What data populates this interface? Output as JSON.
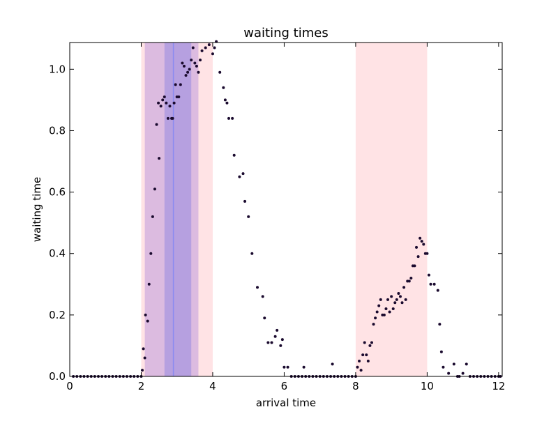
{
  "chart_data": {
    "type": "scatter",
    "title": "waiting times",
    "xlabel": "arrival time",
    "ylabel": "waiting time",
    "xlim": [
      0,
      12.1
    ],
    "ylim": [
      0,
      1.087
    ],
    "xticks": [
      0,
      2,
      4,
      6,
      8,
      10,
      12
    ],
    "yticks": [
      0.0,
      0.2,
      0.4,
      0.6,
      0.8,
      1.0
    ],
    "xtick_labels": [
      "0",
      "2",
      "4",
      "6",
      "8",
      "10",
      "12"
    ],
    "ytick_labels": [
      "0.0",
      "0.2",
      "0.4",
      "0.6",
      "0.8",
      "1.0"
    ],
    "grid": false,
    "colors": {
      "points": "#1a0a2e",
      "red_band": "#ff9aa2",
      "purple_band": "#9b6fd6",
      "blue_band": "#6f6fe0",
      "center_line": "#8b8bf0"
    },
    "shaded_regions": [
      {
        "x0": 2.0,
        "x1": 4.0,
        "color": "red"
      },
      {
        "x0": 8.0,
        "x1": 10.0,
        "color": "red"
      },
      {
        "x0": 2.1,
        "x1": 3.6,
        "color": "purple"
      },
      {
        "x0": 2.65,
        "x1": 3.4,
        "color": "blue"
      }
    ],
    "vertical_lines": [
      {
        "x": 2.9
      }
    ],
    "series": [
      {
        "x": [
          0.1,
          0.2,
          0.3,
          0.4,
          0.5,
          0.6,
          0.7,
          0.8,
          0.9,
          1.0,
          1.1,
          1.2,
          1.3,
          1.4,
          1.5,
          1.6,
          1.7,
          1.8,
          1.9,
          2.0,
          2.03,
          2.06,
          2.1,
          2.12,
          2.18,
          2.22,
          2.27,
          2.32,
          2.38,
          2.43,
          2.48,
          2.5,
          2.55,
          2.6,
          2.65,
          2.7,
          2.75,
          2.8,
          2.85,
          2.88,
          2.92,
          2.96,
          3.0,
          3.05,
          3.1,
          3.15,
          3.2,
          3.25,
          3.3,
          3.35,
          3.4,
          3.45,
          3.5,
          3.55,
          3.6,
          3.65,
          3.7,
          3.8,
          3.9,
          4.0,
          4.05,
          4.1,
          4.2,
          4.3,
          4.35,
          4.4,
          4.45,
          4.55,
          4.6,
          4.75,
          4.85,
          4.9,
          5.0,
          5.1,
          5.25,
          5.4,
          5.45,
          5.55,
          5.65,
          5.75,
          5.8,
          5.9,
          5.95,
          6.0,
          6.1,
          6.2,
          6.3,
          6.4,
          6.5,
          6.55,
          6.6,
          6.7,
          6.8,
          6.9,
          7.0,
          7.1,
          7.2,
          7.3,
          7.35,
          7.4,
          7.5,
          7.6,
          7.7,
          7.8,
          7.9,
          8.0,
          8.05,
          8.1,
          8.15,
          8.2,
          8.25,
          8.3,
          8.35,
          8.4,
          8.45,
          8.5,
          8.55,
          8.6,
          8.65,
          8.7,
          8.75,
          8.8,
          8.85,
          8.9,
          8.95,
          9.0,
          9.05,
          9.1,
          9.15,
          9.2,
          9.25,
          9.3,
          9.35,
          9.4,
          9.45,
          9.5,
          9.55,
          9.6,
          9.65,
          9.7,
          9.75,
          9.8,
          9.85,
          9.9,
          9.95,
          10.0,
          10.05,
          10.1,
          10.2,
          10.3,
          10.35,
          10.4,
          10.45,
          10.6,
          10.75,
          10.85,
          10.9,
          11.0,
          11.1,
          11.2,
          11.3,
          11.4,
          11.5,
          11.6,
          11.7,
          11.8,
          11.9,
          12.0,
          12.05
        ],
        "y": [
          0,
          0,
          0,
          0,
          0,
          0,
          0,
          0,
          0,
          0,
          0,
          0,
          0,
          0,
          0,
          0,
          0,
          0,
          0,
          0,
          0.02,
          0.09,
          0.06,
          0.2,
          0.18,
          0.3,
          0.4,
          0.52,
          0.61,
          0.82,
          0.89,
          0.71,
          0.88,
          0.9,
          0.91,
          0.89,
          0.84,
          0.88,
          0.84,
          0.84,
          0.89,
          0.95,
          0.91,
          0.91,
          0.95,
          1.02,
          1.01,
          0.98,
          0.99,
          1.0,
          1.03,
          1.07,
          1.02,
          1.01,
          0.99,
          1.03,
          1.06,
          1.07,
          1.08,
          1.05,
          1.07,
          1.09,
          0.99,
          0.94,
          0.9,
          0.89,
          0.84,
          0.84,
          0.72,
          0.65,
          0.66,
          0.57,
          0.52,
          0.4,
          0.29,
          0.26,
          0.19,
          0.11,
          0.11,
          0.13,
          0.15,
          0.1,
          0.12,
          0.03,
          0.03,
          0,
          0,
          0,
          0,
          0.03,
          0,
          0,
          0,
          0,
          0,
          0,
          0,
          0,
          0.04,
          0,
          0,
          0,
          0,
          0,
          0,
          0,
          0.03,
          0.05,
          0.02,
          0.07,
          0.11,
          0.07,
          0.05,
          0.1,
          0.11,
          0.17,
          0.19,
          0.21,
          0.23,
          0.25,
          0.2,
          0.2,
          0.22,
          0.25,
          0.21,
          0.26,
          0.22,
          0.24,
          0.25,
          0.27,
          0.26,
          0.24,
          0.29,
          0.25,
          0.31,
          0.31,
          0.32,
          0.36,
          0.36,
          0.42,
          0.39,
          0.45,
          0.44,
          0.43,
          0.4,
          0.4,
          0.33,
          0.3,
          0.3,
          0.28,
          0.17,
          0.08,
          0.03,
          0.01,
          0.04,
          0,
          0,
          0.01,
          0.04,
          0,
          0,
          0,
          0,
          0,
          0,
          0,
          0,
          0,
          0
        ]
      }
    ]
  }
}
